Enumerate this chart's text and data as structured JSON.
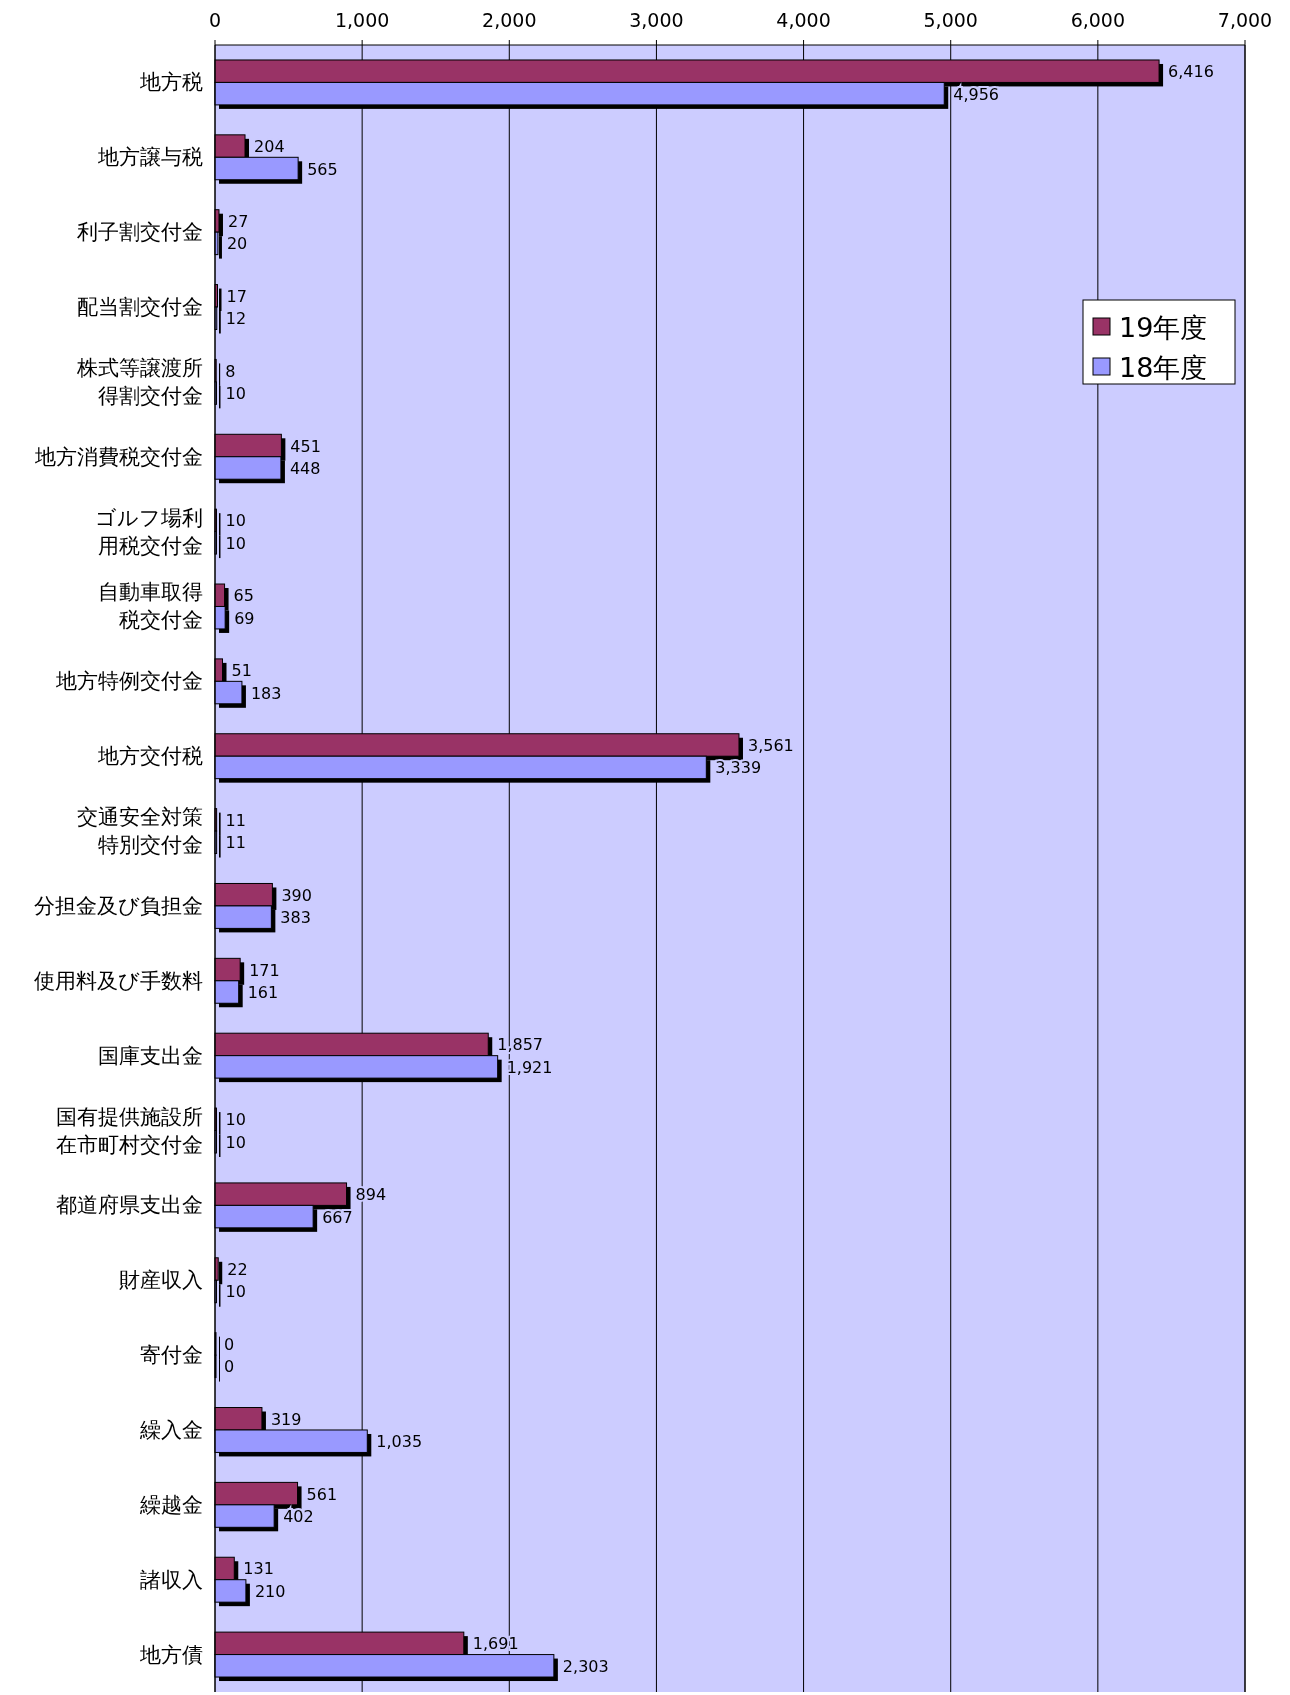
{
  "chart_data": {
    "type": "bar",
    "orientation": "horizontal",
    "categories": [
      "地方税",
      "地方譲与税",
      "利子割交付金",
      "配当割交付金",
      "株式等譲渡所得割交付金",
      "地方消費税交付金",
      "ゴルフ場利用税交付金",
      "自動車取得税交付金",
      "地方特例交付金",
      "地方交付税",
      "交通安全対策特別交付金",
      "分担金及び負担金",
      "使用料及び手数料",
      "国庫支出金",
      "国有提供施設所在市町村交付金",
      "都道府県支出金",
      "財産収入",
      "寄付金",
      "繰入金",
      "繰越金",
      "諸収入",
      "地方債"
    ],
    "series": [
      {
        "name": "19年度",
        "color": "#993366",
        "values": [
          6416,
          204,
          27,
          17,
          8,
          451,
          10,
          65,
          51,
          3561,
          11,
          390,
          171,
          1857,
          10,
          894,
          22,
          0,
          319,
          561,
          131,
          1691
        ],
        "value_labels": [
          "6,416",
          "204",
          "27",
          "17",
          "8",
          "451",
          "10",
          "65",
          "51",
          "3,561",
          "11",
          "390",
          "171",
          "1,857",
          "10",
          "894",
          "22",
          "0",
          "319",
          "561",
          "131",
          "1,691"
        ]
      },
      {
        "name": "18年度",
        "color": "#9999ff",
        "values": [
          4956,
          565,
          20,
          12,
          10,
          448,
          10,
          69,
          183,
          3339,
          11,
          383,
          161,
          1921,
          10,
          667,
          10,
          0,
          1035,
          402,
          210,
          2303
        ],
        "value_labels": [
          "4,956",
          "565",
          "20",
          "12",
          "10",
          "448",
          "10",
          "69",
          "183",
          "3,339",
          "11",
          "383",
          "161",
          "1,921",
          "10",
          "667",
          "10",
          "0",
          "1,035",
          "402",
          "210",
          "2,303"
        ]
      }
    ],
    "xlim": [
      0,
      7000
    ],
    "xticks": [
      {
        "value": 0,
        "label": "0"
      },
      {
        "value": 1000,
        "label": "1,000"
      },
      {
        "value": 2000,
        "label": "2,000"
      },
      {
        "value": 3000,
        "label": "3,000"
      },
      {
        "value": 4000,
        "label": "4,000"
      },
      {
        "value": 5000,
        "label": "5,000"
      },
      {
        "value": 6000,
        "label": "6,000"
      },
      {
        "value": 7000,
        "label": "7,000"
      }
    ],
    "grid": "x",
    "legend": "top right"
  }
}
